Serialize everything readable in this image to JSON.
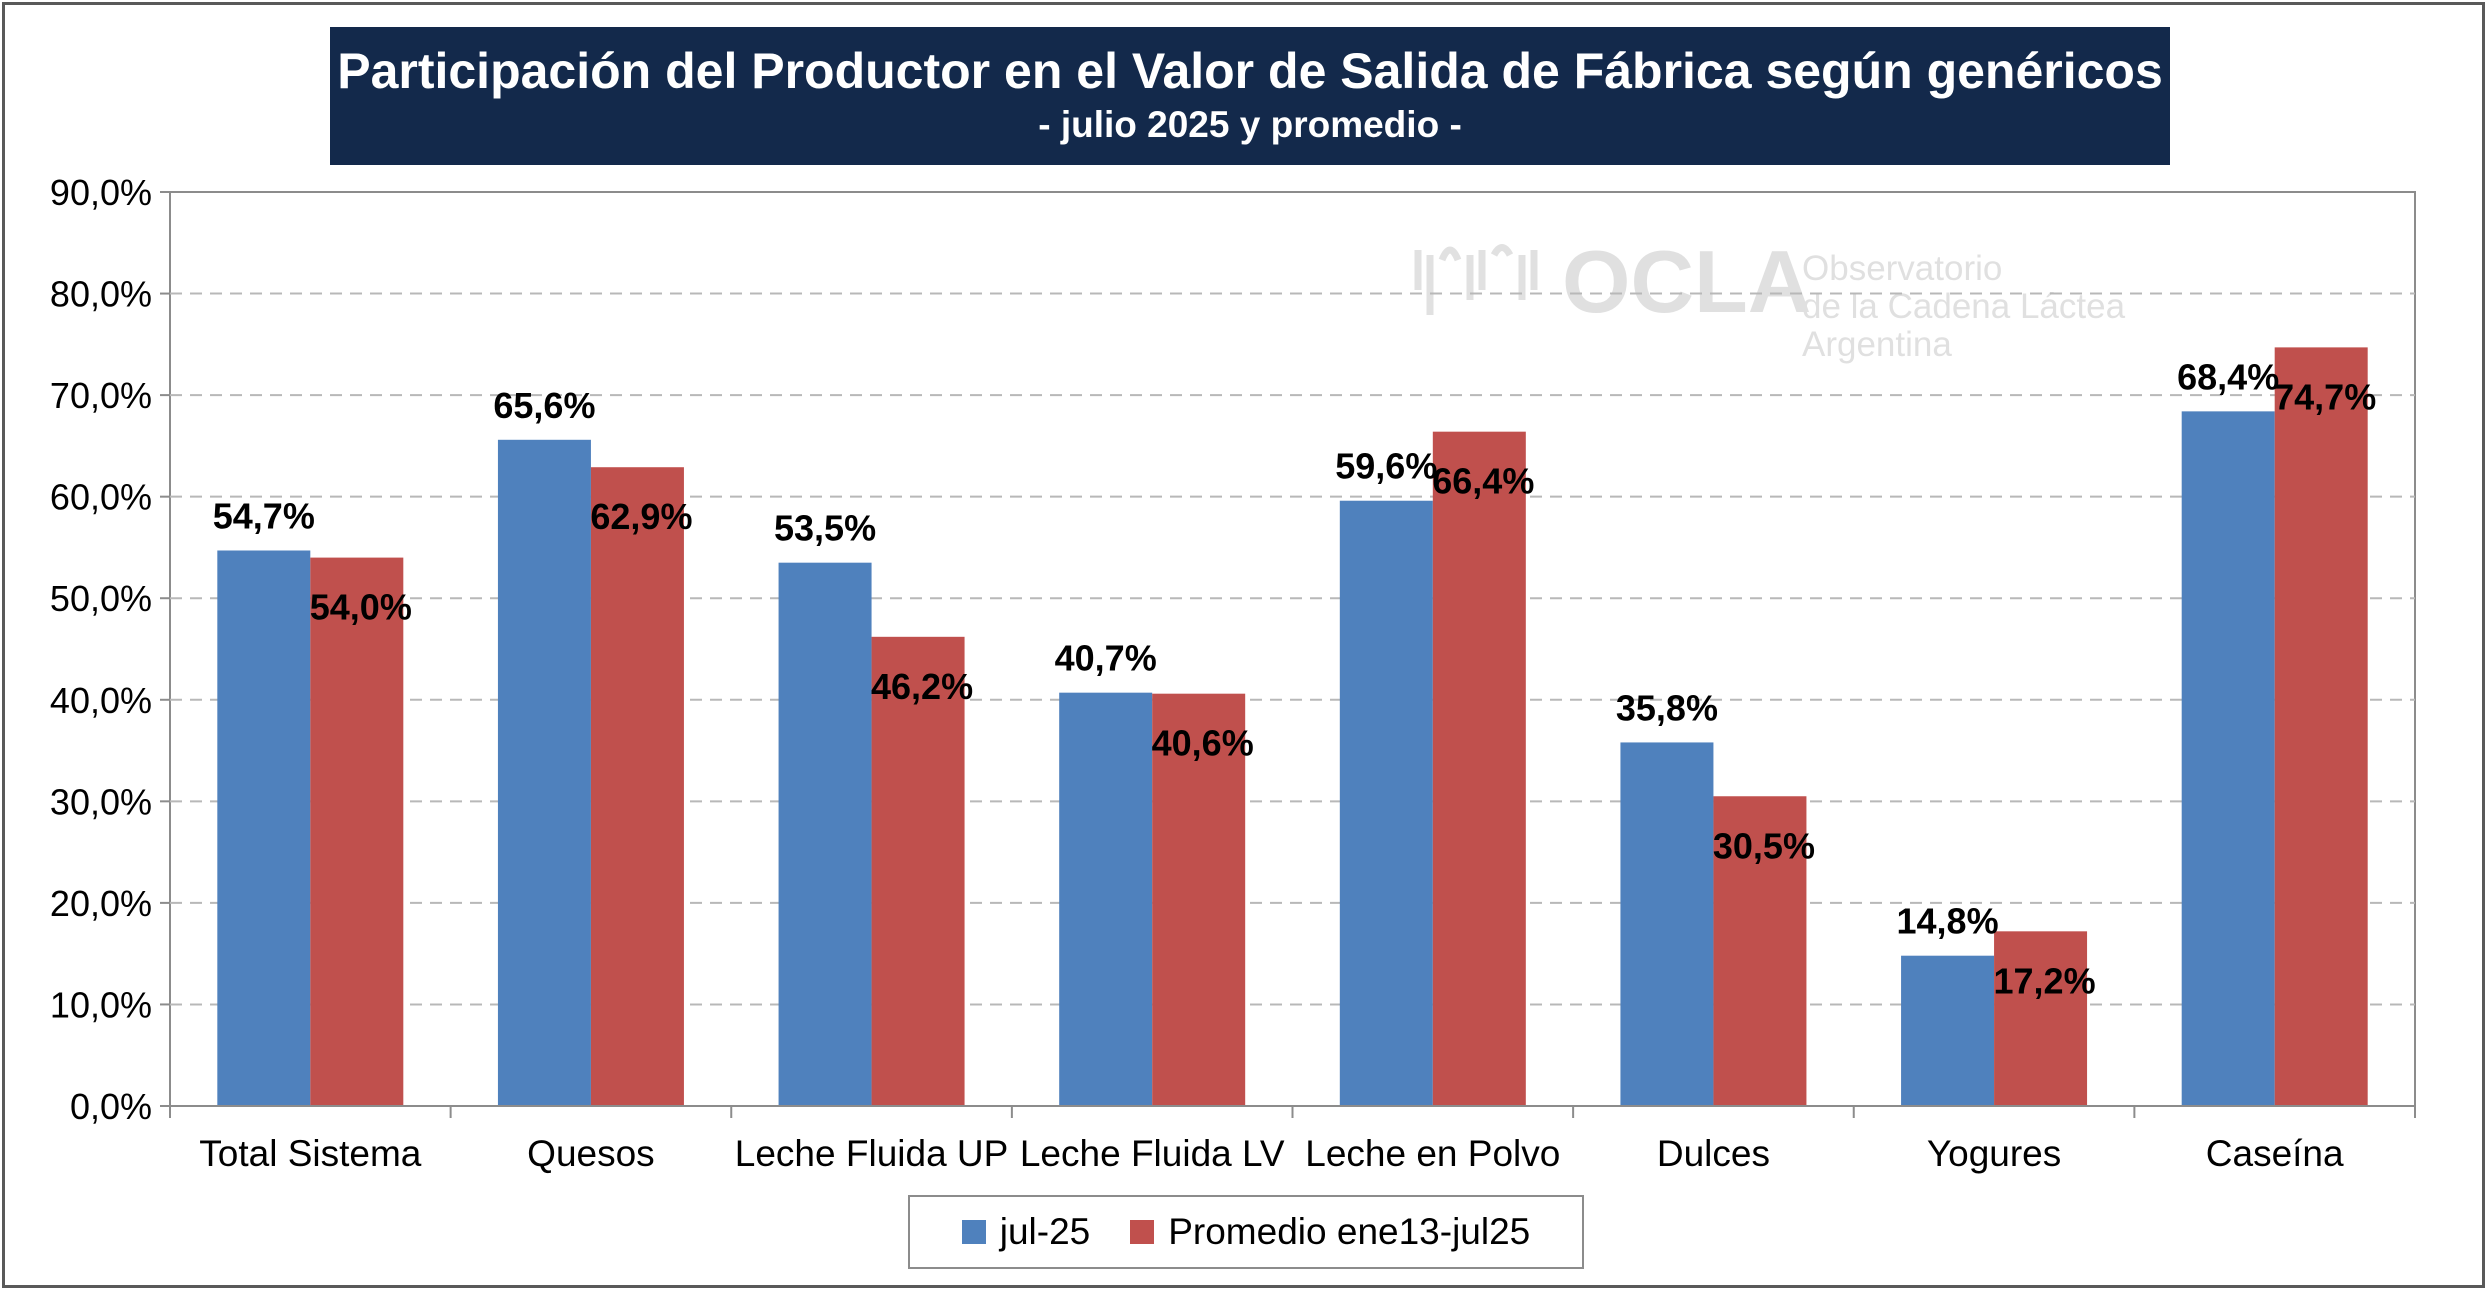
{
  "title": "Participación del Productor en el Valor de Salida de Fábrica según genéricos",
  "subtitle": "- julio 2025 y promedio  -",
  "watermark": {
    "name": "OCLA",
    "line1": "Observatorio",
    "line2": "de la Cadena Láctea",
    "line3": "Argentina"
  },
  "legend": [
    {
      "name": "jul-25",
      "color": "#4f81bd"
    },
    {
      "name": "Promedio ene13-jul25",
      "color": "#c0504d"
    }
  ],
  "chart_data": {
    "type": "bar",
    "categories": [
      "Total Sistema",
      "Quesos",
      "Leche Fluida UP",
      "Leche Fluida LV",
      "Leche en Polvo",
      "Dulces",
      "Yogures",
      "Caseína"
    ],
    "series": [
      {
        "name": "jul-25",
        "color": "#4f81bd",
        "values": [
          54.7,
          65.6,
          53.5,
          40.7,
          59.6,
          35.8,
          14.8,
          68.4
        ],
        "labels": [
          "54,7%",
          "65,6%",
          "53,5%",
          "40,7%",
          "59,6%",
          "35,8%",
          "14,8%",
          "68,4%"
        ]
      },
      {
        "name": "Promedio ene13-jul25",
        "color": "#c0504d",
        "values": [
          54.0,
          62.9,
          46.2,
          40.6,
          66.4,
          30.5,
          17.2,
          74.7
        ],
        "labels": [
          "54,0%",
          "62,9%",
          "46,2%",
          "40,6%",
          "66,4%",
          "30,5%",
          "17,2%",
          "74,7%"
        ]
      }
    ],
    "ylim": [
      0,
      90
    ],
    "yticks": [
      "0,0%",
      "10,0%",
      "20,0%",
      "30,0%",
      "40,0%",
      "50,0%",
      "60,0%",
      "70,0%",
      "80,0%",
      "90,0%"
    ],
    "grid": true,
    "legend_position": "bottom"
  }
}
